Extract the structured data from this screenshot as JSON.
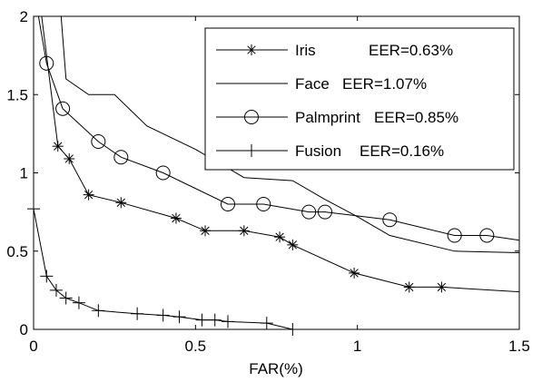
{
  "chart_data": {
    "type": "line",
    "xlabel": "FAR(%)",
    "ylabel": "",
    "xlim": [
      0,
      1.5
    ],
    "ylim": [
      0,
      2
    ],
    "xticks": [
      "0",
      "0.5",
      "1",
      "1.5"
    ],
    "yticks": [
      "0",
      "0.5",
      "1",
      "1.5",
      "2"
    ],
    "legend_position": "top-right",
    "grid": false,
    "series": [
      {
        "name": "Iris",
        "eer": "EER=0.63%",
        "marker": "star",
        "points": [
          [
            0.025,
            2.0
          ],
          [
            0.075,
            1.17
          ],
          [
            0.11,
            1.09
          ],
          [
            0.17,
            0.86
          ],
          [
            0.27,
            0.81
          ],
          [
            0.44,
            0.71
          ],
          [
            0.53,
            0.63
          ],
          [
            0.65,
            0.63
          ],
          [
            0.76,
            0.59
          ],
          [
            0.8,
            0.54
          ],
          [
            0.99,
            0.36
          ],
          [
            1.16,
            0.27
          ],
          [
            1.26,
            0.27
          ],
          [
            1.5,
            0.24
          ]
        ],
        "marker_points": [
          [
            0.075,
            1.17
          ],
          [
            0.11,
            1.09
          ],
          [
            0.17,
            0.86
          ],
          [
            0.27,
            0.81
          ],
          [
            0.44,
            0.71
          ],
          [
            0.53,
            0.63
          ],
          [
            0.65,
            0.63
          ],
          [
            0.76,
            0.59
          ],
          [
            0.8,
            0.54
          ],
          [
            0.99,
            0.36
          ],
          [
            1.16,
            0.27
          ],
          [
            1.26,
            0.27
          ]
        ]
      },
      {
        "name": "Face",
        "eer": "EER=1.07%",
        "marker": "none",
        "points": [
          [
            0.085,
            2.0
          ],
          [
            0.1,
            1.6
          ],
          [
            0.17,
            1.5
          ],
          [
            0.25,
            1.5
          ],
          [
            0.35,
            1.3
          ],
          [
            0.5,
            1.15
          ],
          [
            0.65,
            0.97
          ],
          [
            0.8,
            0.95
          ],
          [
            0.9,
            0.83
          ],
          [
            1.0,
            0.72
          ],
          [
            1.1,
            0.6
          ],
          [
            1.3,
            0.5
          ],
          [
            1.5,
            0.49
          ]
        ],
        "marker_points": []
      },
      {
        "name": "Palmprint",
        "eer": "EER=0.85%",
        "marker": "circle",
        "points": [
          [
            0.015,
            2.0
          ],
          [
            0.04,
            1.7
          ],
          [
            0.09,
            1.41
          ],
          [
            0.2,
            1.2
          ],
          [
            0.27,
            1.1
          ],
          [
            0.4,
            1.0
          ],
          [
            0.6,
            0.8
          ],
          [
            0.71,
            0.8
          ],
          [
            0.85,
            0.75
          ],
          [
            0.9,
            0.75
          ],
          [
            1.1,
            0.7
          ],
          [
            1.3,
            0.6
          ],
          [
            1.4,
            0.6
          ],
          [
            1.5,
            0.57
          ]
        ],
        "marker_points": [
          [
            0.04,
            1.7
          ],
          [
            0.09,
            1.41
          ],
          [
            0.2,
            1.2
          ],
          [
            0.27,
            1.1
          ],
          [
            0.4,
            1.0
          ],
          [
            0.6,
            0.8
          ],
          [
            0.71,
            0.8
          ],
          [
            0.85,
            0.75
          ],
          [
            0.9,
            0.75
          ],
          [
            1.1,
            0.7
          ],
          [
            1.3,
            0.6
          ],
          [
            1.4,
            0.6
          ]
        ]
      },
      {
        "name": "Fusion",
        "eer": "EER=0.16%",
        "marker": "plus",
        "points": [
          [
            0.0,
            0.77
          ],
          [
            0.04,
            0.34
          ],
          [
            0.07,
            0.25
          ],
          [
            0.1,
            0.2
          ],
          [
            0.14,
            0.17
          ],
          [
            0.2,
            0.12
          ],
          [
            0.32,
            0.1
          ],
          [
            0.4,
            0.09
          ],
          [
            0.45,
            0.08
          ],
          [
            0.52,
            0.06
          ],
          [
            0.56,
            0.06
          ],
          [
            0.6,
            0.05
          ],
          [
            0.72,
            0.04
          ],
          [
            0.8,
            0.0
          ]
        ],
        "marker_points": [
          [
            0.0,
            0.77
          ],
          [
            0.04,
            0.34
          ],
          [
            0.07,
            0.25
          ],
          [
            0.1,
            0.2
          ],
          [
            0.14,
            0.17
          ],
          [
            0.2,
            0.12
          ],
          [
            0.32,
            0.1
          ],
          [
            0.4,
            0.09
          ],
          [
            0.45,
            0.08
          ],
          [
            0.52,
            0.06
          ],
          [
            0.56,
            0.06
          ],
          [
            0.6,
            0.05
          ],
          [
            0.72,
            0.04
          ],
          [
            0.8,
            0.0
          ]
        ]
      }
    ]
  }
}
